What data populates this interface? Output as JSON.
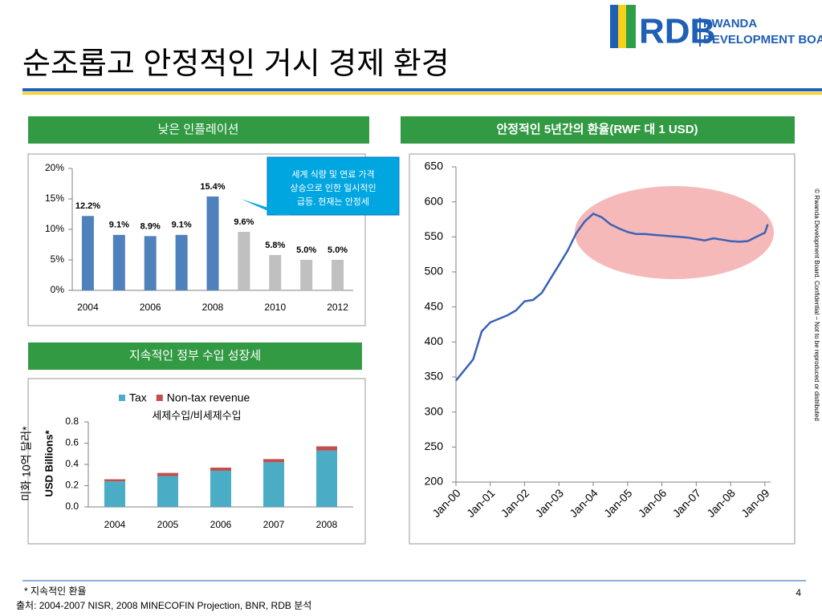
{
  "title": "순조롭고 안정적인 거시 경제 환경",
  "logo": {
    "mark": "RDB",
    "line1": "RWANDA",
    "line2": "DEVELOPMENT BOARD"
  },
  "side_note": "© Rwanda Development Board. Confidential – Not to be reproduced or distributed",
  "footer": {
    "note": "* 지속적인 환율",
    "source": "출처: 2004-2007 NISR, 2008 MINECOFIN Projection, BNR, RDB 분석",
    "page": "4"
  },
  "chart_data": [
    {
      "type": "bar",
      "title": "낮은 인플레이션",
      "categories": [
        "2004",
        null,
        "2006",
        null,
        "2008",
        null,
        "2010",
        null,
        "2012"
      ],
      "values": [
        12.2,
        9.1,
        8.9,
        9.1,
        15.4,
        9.6,
        5.8,
        5.0,
        5.0
      ],
      "value_labels": [
        "12.2%",
        "9.1%",
        "8.9%",
        "9.1%",
        "15.4%",
        "9.6%",
        "5.8%",
        "5.0%",
        "5.0%"
      ],
      "colors": [
        "#4f81bd",
        "#4f81bd",
        "#4f81bd",
        "#4f81bd",
        "#4f81bd",
        "#c0c0c0",
        "#c0c0c0",
        "#c0c0c0",
        "#c0c0c0"
      ],
      "ylim": [
        0,
        20
      ],
      "yticks": [
        {
          "value": 0,
          "label": "0%"
        },
        {
          "value": 5,
          "label": "5%"
        },
        {
          "value": 10,
          "label": "10%"
        },
        {
          "value": 15,
          "label": "15%"
        },
        {
          "value": 20,
          "label": "20%"
        }
      ],
      "annotation": [
        "세계 식량 및 연료 가격",
        "상승으로 인한 일시적인",
        "급등. 현재는 안정세"
      ]
    },
    {
      "type": "line",
      "title": "안정적인 5년간의 환율(RWF 대 1 USD)",
      "color": "#3a62b5",
      "x": [
        "2000-01",
        "2000-04",
        "2000-07",
        "2000-10",
        "2001-01",
        "2001-04",
        "2001-07",
        "2001-10",
        "2002-01",
        "2002-04",
        "2002-07",
        "2002-10",
        "2003-01",
        "2003-04",
        "2003-07",
        "2003-10",
        "2004-01",
        "2004-04",
        "2004-07",
        "2004-10",
        "2005-01",
        "2005-04",
        "2005-07",
        "2005-10",
        "2006-01",
        "2006-04",
        "2006-07",
        "2006-10",
        "2007-01",
        "2007-04",
        "2007-07",
        "2007-10",
        "2008-01",
        "2008-04",
        "2008-07",
        "2008-10",
        "2009-01",
        "2009-02"
      ],
      "values": [
        345,
        360,
        375,
        415,
        428,
        433,
        438,
        445,
        458,
        460,
        470,
        490,
        510,
        530,
        555,
        572,
        583,
        578,
        568,
        562,
        557,
        554,
        554,
        553,
        552,
        551,
        550,
        549,
        547,
        545,
        548,
        546,
        544,
        543,
        544,
        550,
        556,
        568
      ],
      "xlim": [
        "2000-01",
        "2009-03"
      ],
      "xticks": [
        {
          "value": "2000-01",
          "label": "Jan-00"
        },
        {
          "value": "2001-01",
          "label": "Jan-01"
        },
        {
          "value": "2002-01",
          "label": "Jan-02"
        },
        {
          "value": "2003-01",
          "label": "Jan-03"
        },
        {
          "value": "2004-01",
          "label": "Jan-04"
        },
        {
          "value": "2005-01",
          "label": "Jan-05"
        },
        {
          "value": "2006-01",
          "label": "Jan-06"
        },
        {
          "value": "2007-01",
          "label": "Jan-07"
        },
        {
          "value": "2008-01",
          "label": "Jan-08"
        },
        {
          "value": "2009-01",
          "label": "Jan-09"
        }
      ],
      "ylim": [
        200,
        650
      ],
      "yticks": [
        200,
        250,
        300,
        350,
        400,
        450,
        500,
        550,
        600,
        650
      ]
    },
    {
      "type": "stacked_bar",
      "title": "지속적인 정부 수입 성장세",
      "subtitle": "세제수입/비세제수입",
      "y_label": "USD Billions*",
      "y_label_ko": "미화 10억 달러*",
      "categories": [
        "2004",
        "2005",
        "2006",
        "2007",
        "2008"
      ],
      "series": [
        {
          "name": "Tax",
          "color": "#4bacc6",
          "values": [
            0.24,
            0.29,
            0.34,
            0.42,
            0.53
          ]
        },
        {
          "name": "Non-tax revenue",
          "color": "#c0504d",
          "values": [
            0.02,
            0.03,
            0.03,
            0.03,
            0.04
          ]
        }
      ],
      "ylim": [
        0,
        0.8
      ],
      "yticks": [
        {
          "value": 0,
          "label": "0.0"
        },
        0.2,
        0.4,
        0.6,
        0.8
      ]
    }
  ]
}
